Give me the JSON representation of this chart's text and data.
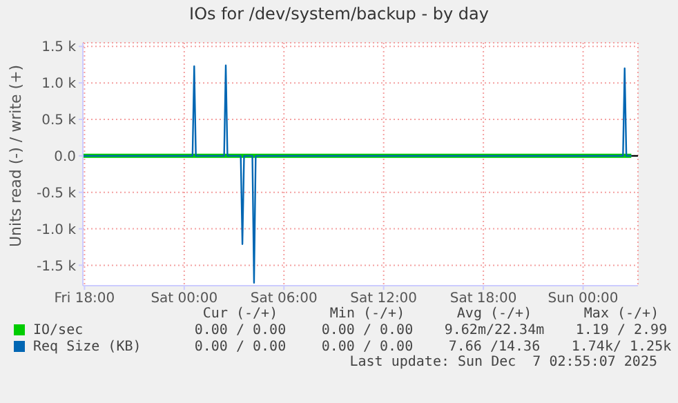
{
  "chart_data": {
    "type": "line",
    "title": "IOs for /dev/system/backup - by day",
    "ylabel": "Units read (-) / write (+)",
    "xlim": [
      "2025-12-05T17:54",
      "2025-12-07T03:18"
    ],
    "xticks": [
      {
        "value": "2025-12-05T18:00",
        "label": "Fri 18:00"
      },
      {
        "value": "2025-12-06T00:00",
        "label": "Sat 00:00"
      },
      {
        "value": "2025-12-06T06:00",
        "label": "Sat 06:00"
      },
      {
        "value": "2025-12-06T12:00",
        "label": "Sat 12:00"
      },
      {
        "value": "2025-12-06T18:00",
        "label": "Sat 18:00"
      },
      {
        "value": "2025-12-07T00:00",
        "label": "Sun 00:00"
      }
    ],
    "ylim": [
      -1780,
      1550
    ],
    "yticks": [
      {
        "value": -1500,
        "label": "-1.5 k"
      },
      {
        "value": -1000,
        "label": "-1.0 k"
      },
      {
        "value": -500,
        "label": "-0.5 k"
      },
      {
        "value": 0,
        "label": "0.0"
      },
      {
        "value": 500,
        "label": "0.5 k"
      },
      {
        "value": 1000,
        "label": "1.0 k"
      },
      {
        "value": 1500,
        "label": "1.5 k"
      }
    ],
    "grid": true,
    "legend": "bottom",
    "marker": "none",
    "line_style": "solid",
    "ref_lines": [
      {
        "axis": "y",
        "value": 0,
        "color": "#000000"
      }
    ],
    "series": [
      {
        "name": "IO/sec",
        "color": "#00cc00",
        "x": [
          "2025-12-05T17:54",
          "2025-12-07T02:54"
        ],
        "values": [
          0,
          0
        ]
      },
      {
        "name": "Req Size (KB)",
        "color": "#0066b3",
        "x": [
          "2025-12-05T17:54",
          "2025-12-06T00:30",
          "2025-12-06T00:36",
          "2025-12-06T00:42",
          "2025-12-06T02:24",
          "2025-12-06T02:30",
          "2025-12-06T02:36",
          "2025-12-06T03:24",
          "2025-12-06T03:30",
          "2025-12-06T03:36",
          "2025-12-06T04:06",
          "2025-12-06T04:12",
          "2025-12-06T04:18",
          "2025-12-07T02:24",
          "2025-12-07T02:30",
          "2025-12-07T02:36",
          "2025-12-07T02:54"
        ],
        "values": [
          0,
          0,
          1230,
          0,
          0,
          1240,
          0,
          0,
          -1210,
          0,
          0,
          -1740,
          0,
          0,
          1200,
          0,
          0
        ]
      }
    ],
    "annotations": [
      "Cur (-/+)",
      "Min (-/+)",
      "Avg (-/+)",
      "Max (-/+)",
      "0.00 / 0.00",
      "0.00 / 0.00",
      "9.62m/22.34m",
      "1.19 / 2.99",
      "0.00 / 0.00",
      "0.00 / 0.00",
      "7.66 /14.36",
      "1.74k/ 1.25k",
      "Last update: Sun Dec  7 02:55:07 2025"
    ]
  }
}
